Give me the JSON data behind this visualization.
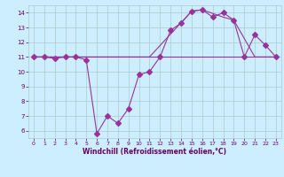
{
  "background_color": "#cceeff",
  "grid_color": "#aacccc",
  "line_color": "#993399",
  "xlabel": "Windchill (Refroidissement éolien,°C)",
  "xlabel_color": "#660066",
  "tick_color": "#660066",
  "ylim": [
    5.5,
    14.5
  ],
  "xlim": [
    -0.5,
    23.5
  ],
  "yticks": [
    6,
    7,
    8,
    9,
    10,
    11,
    12,
    13,
    14
  ],
  "xticks": [
    0,
    1,
    2,
    3,
    4,
    5,
    6,
    7,
    8,
    9,
    10,
    11,
    12,
    13,
    14,
    15,
    16,
    17,
    18,
    19,
    20,
    21,
    22,
    23
  ],
  "line1_x": [
    0,
    1,
    2,
    3,
    4,
    5,
    6,
    7,
    8,
    9,
    10,
    11,
    12,
    13,
    14,
    15,
    16,
    17,
    18,
    19,
    20,
    21,
    22,
    23
  ],
  "line1_y": [
    11,
    11,
    10.9,
    11,
    11,
    10.8,
    5.8,
    7.0,
    6.5,
    7.5,
    9.8,
    10.0,
    11.0,
    12.8,
    13.3,
    14.1,
    14.2,
    13.7,
    14.0,
    13.5,
    11.0,
    12.5,
    11.8,
    11.0
  ],
  "line2_x": [
    0,
    1,
    2,
    3,
    4,
    5,
    6,
    7,
    8,
    9,
    10,
    11,
    12,
    13,
    14,
    15,
    16,
    17,
    18,
    19,
    20,
    21,
    22,
    23
  ],
  "line2_y": [
    11,
    11,
    11,
    11,
    11,
    11,
    11,
    11,
    11,
    11,
    11,
    11,
    11,
    11,
    11,
    11,
    11,
    11,
    11,
    11,
    11,
    11,
    11,
    11
  ],
  "line3_x": [
    0,
    11,
    15,
    16,
    18,
    19,
    21,
    23
  ],
  "line3_y": [
    11,
    11,
    14.1,
    14.2,
    13.7,
    13.5,
    11,
    11
  ]
}
